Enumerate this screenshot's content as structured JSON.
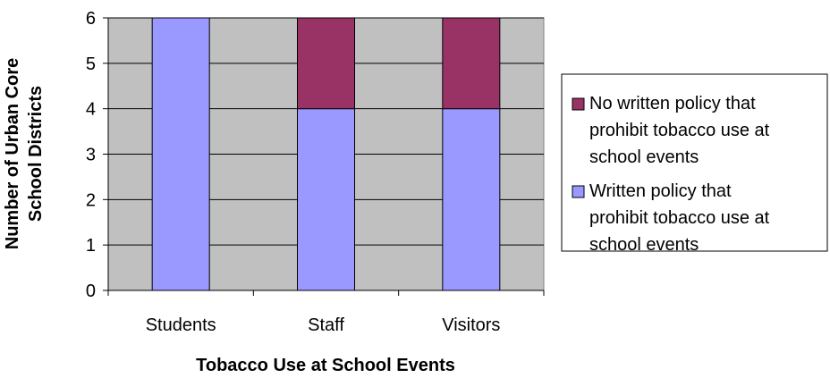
{
  "chart_data": {
    "type": "bar",
    "stacked": true,
    "categories": [
      "Students",
      "Staff",
      "Visitors"
    ],
    "series": [
      {
        "name": "Written policy that prohibit tobacco use at school events",
        "values": [
          6,
          4,
          4
        ],
        "color": "#9999ff"
      },
      {
        "name": "No written policy that prohibit tobacco use at school events",
        "values": [
          0,
          2,
          2
        ],
        "color": "#993366"
      }
    ],
    "title": "",
    "xlabel": "Tobacco Use at School Events",
    "ylabel": "Number of Urban Core School Districts",
    "ylim": [
      0,
      6
    ],
    "yticks": [
      0,
      1,
      2,
      3,
      4,
      5,
      6
    ],
    "grid": true,
    "plot_background": "#c0c0c0",
    "legend_position": "right"
  }
}
